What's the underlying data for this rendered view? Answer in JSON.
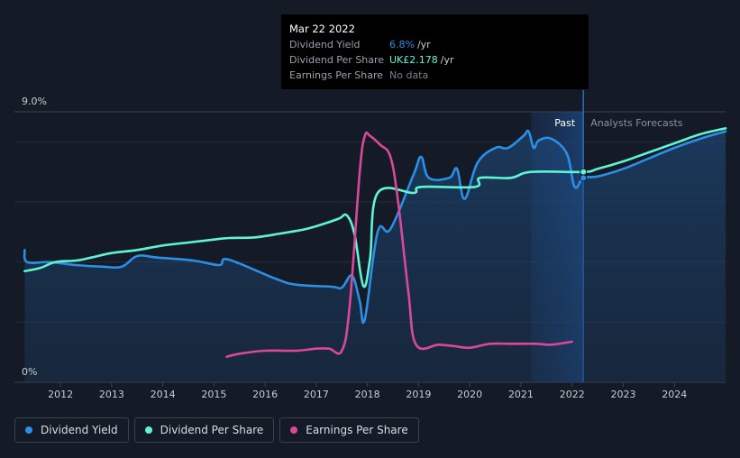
{
  "tooltip": {
    "date": "Mar 22 2022",
    "rows": [
      {
        "label": "Dividend Yield",
        "value": "6.8%",
        "unit": "/yr",
        "color": "#2b8fe6"
      },
      {
        "label": "Dividend Per Share",
        "value": "UK£2.178",
        "unit": "/yr",
        "color": "#5ff5d4"
      },
      {
        "label": "Earnings Per Share",
        "value": "No data",
        "unit": "",
        "color": "#7a7f8a"
      }
    ]
  },
  "regions": {
    "past": "Past",
    "forecast": "Analysts Forecasts"
  },
  "legend": [
    {
      "label": "Dividend Yield",
      "color": "#2b8fe6"
    },
    {
      "label": "Dividend Per Share",
      "color": "#5ff5d4"
    },
    {
      "label": "Earnings Per Share",
      "color": "#d9499a"
    }
  ],
  "chart_data": {
    "type": "line",
    "y_ticks": [
      "9.0%",
      "0%"
    ],
    "ylim": [
      0,
      9
    ],
    "xlim": [
      2011.1,
      2025.0
    ],
    "x_tick_labels": [
      "2012",
      "2013",
      "2014",
      "2015",
      "2016",
      "2017",
      "2018",
      "2019",
      "2020",
      "2021",
      "2022",
      "2023",
      "2024"
    ],
    "x_tick_values": [
      2012,
      2013,
      2014,
      2015,
      2016,
      2017,
      2018,
      2019,
      2020,
      2021,
      2022,
      2023,
      2024
    ],
    "past_end": 2022.22,
    "highlight_start": 2021.2,
    "series": [
      {
        "name": "Dividend Yield",
        "color": "#2b8fe6",
        "fill": true,
        "points": [
          [
            2011.3,
            4.4
          ],
          [
            2011.35,
            4.0
          ],
          [
            2011.8,
            4.0
          ],
          [
            2012.3,
            3.9
          ],
          [
            2012.8,
            3.85
          ],
          [
            2013.2,
            3.85
          ],
          [
            2013.5,
            4.2
          ],
          [
            2013.9,
            4.15
          ],
          [
            2014.6,
            4.05
          ],
          [
            2015.1,
            3.9
          ],
          [
            2015.2,
            4.1
          ],
          [
            2015.5,
            3.95
          ],
          [
            2016.2,
            3.45
          ],
          [
            2016.6,
            3.25
          ],
          [
            2017.3,
            3.18
          ],
          [
            2017.5,
            3.15
          ],
          [
            2017.7,
            3.55
          ],
          [
            2017.85,
            2.7
          ],
          [
            2017.95,
            2.1
          ],
          [
            2018.2,
            5.0
          ],
          [
            2018.45,
            5.1
          ],
          [
            2018.9,
            6.9
          ],
          [
            2019.05,
            7.5
          ],
          [
            2019.2,
            6.8
          ],
          [
            2019.6,
            6.8
          ],
          [
            2019.75,
            7.1
          ],
          [
            2019.9,
            6.1
          ],
          [
            2020.15,
            7.3
          ],
          [
            2020.5,
            7.8
          ],
          [
            2020.75,
            7.8
          ],
          [
            2021.05,
            8.2
          ],
          [
            2021.15,
            8.35
          ],
          [
            2021.25,
            7.8
          ],
          [
            2021.35,
            8.05
          ],
          [
            2021.6,
            8.1
          ],
          [
            2021.9,
            7.6
          ],
          [
            2022.05,
            6.5
          ],
          [
            2022.22,
            6.8
          ],
          [
            2022.5,
            6.85
          ],
          [
            2023.0,
            7.1
          ],
          [
            2023.5,
            7.45
          ],
          [
            2024.0,
            7.8
          ],
          [
            2024.5,
            8.1
          ],
          [
            2025.0,
            8.35
          ]
        ]
      },
      {
        "name": "Dividend Per Share",
        "color": "#5ff5d4",
        "fill": false,
        "points": [
          [
            2011.3,
            3.7
          ],
          [
            2011.6,
            3.8
          ],
          [
            2011.9,
            4.0
          ],
          [
            2012.3,
            4.05
          ],
          [
            2012.6,
            4.15
          ],
          [
            2013.0,
            4.3
          ],
          [
            2013.5,
            4.4
          ],
          [
            2014.0,
            4.55
          ],
          [
            2014.5,
            4.65
          ],
          [
            2015.0,
            4.75
          ],
          [
            2015.3,
            4.8
          ],
          [
            2015.8,
            4.82
          ],
          [
            2016.3,
            4.95
          ],
          [
            2016.8,
            5.1
          ],
          [
            2017.2,
            5.3
          ],
          [
            2017.45,
            5.45
          ],
          [
            2017.6,
            5.55
          ],
          [
            2017.75,
            4.9
          ],
          [
            2017.92,
            3.2
          ],
          [
            2018.05,
            4.1
          ],
          [
            2018.2,
            6.3
          ],
          [
            2018.9,
            6.3
          ],
          [
            2019.05,
            6.5
          ],
          [
            2020.1,
            6.5
          ],
          [
            2020.2,
            6.8
          ],
          [
            2020.8,
            6.8
          ],
          [
            2021.2,
            7.0
          ],
          [
            2022.22,
            7.0
          ],
          [
            2022.5,
            7.1
          ],
          [
            2023.0,
            7.35
          ],
          [
            2023.5,
            7.65
          ],
          [
            2024.0,
            7.95
          ],
          [
            2024.5,
            8.25
          ],
          [
            2025.0,
            8.45
          ]
        ]
      },
      {
        "name": "Earnings Per Share",
        "color": "#d9499a",
        "fill": false,
        "points": [
          [
            2015.25,
            0.85
          ],
          [
            2015.5,
            0.95
          ],
          [
            2016.0,
            1.05
          ],
          [
            2016.6,
            1.05
          ],
          [
            2017.0,
            1.12
          ],
          [
            2017.25,
            1.12
          ],
          [
            2017.5,
            1.05
          ],
          [
            2017.65,
            2.5
          ],
          [
            2017.85,
            7.0
          ],
          [
            2017.95,
            8.2
          ],
          [
            2018.05,
            8.2
          ],
          [
            2018.25,
            7.9
          ],
          [
            2018.45,
            7.5
          ],
          [
            2018.6,
            6.0
          ],
          [
            2018.8,
            3.0
          ],
          [
            2018.95,
            1.25
          ],
          [
            2019.4,
            1.25
          ],
          [
            2019.7,
            1.2
          ],
          [
            2020.0,
            1.15
          ],
          [
            2020.4,
            1.28
          ],
          [
            2020.8,
            1.28
          ],
          [
            2021.3,
            1.28
          ],
          [
            2021.6,
            1.25
          ],
          [
            2022.0,
            1.35
          ]
        ]
      }
    ]
  }
}
